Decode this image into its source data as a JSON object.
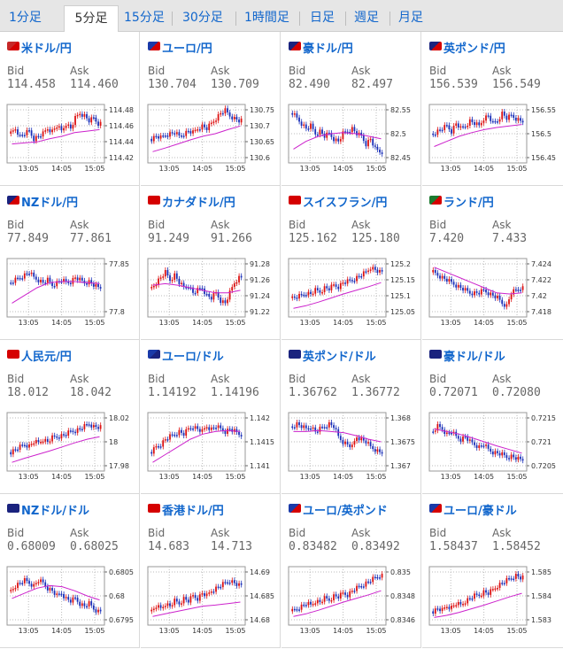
{
  "tabs": [
    "1分足",
    "5分足",
    "15分足",
    "30分足",
    "1時間足",
    "日足",
    "週足",
    "月足"
  ],
  "active_tab": 1,
  "labels": {
    "bid": "Bid",
    "ask": "Ask"
  },
  "colors": {
    "up": "#dd1111",
    "down": "#1a2fb8",
    "ma": "#cc22cc",
    "link": "#1166cc"
  },
  "charts": [
    {
      "name": "米ドル/円",
      "flag": "us-jp-flag-icon",
      "bid": "114.458",
      "ask": "114.460",
      "ticks": [
        "114.48",
        "114.46",
        "114.44",
        "114.42"
      ],
      "xticks": [
        "13:05",
        "14:05",
        "15:05"
      ],
      "trend": [
        0.5,
        0.4,
        0.55,
        0.5,
        0.45,
        0.6,
        0.55,
        0.5,
        0.4,
        0.45,
        0.35,
        0.45,
        0.3,
        0.4,
        0.2,
        0.1,
        0.15,
        0.25,
        0.2,
        0.3
      ],
      "ma": [
        0.7,
        0.68,
        0.66,
        0.6,
        0.55,
        0.48,
        0.45,
        0.42
      ]
    },
    {
      "name": "ユーロ/円",
      "flag": "eu-jp-flag-icon",
      "bid": "130.704",
      "ask": "130.709",
      "ticks": [
        "130.75",
        "130.7",
        "130.65",
        "130.6"
      ],
      "xticks": [
        "13:05",
        "14:05",
        "15:05"
      ],
      "trend": [
        0.6,
        0.55,
        0.58,
        0.52,
        0.5,
        0.48,
        0.55,
        0.5,
        0.45,
        0.48,
        0.4,
        0.35,
        0.4,
        0.3,
        0.2,
        0.1,
        0.05,
        0.15,
        0.2,
        0.25
      ],
      "ma": [
        0.85,
        0.78,
        0.7,
        0.62,
        0.55,
        0.5,
        0.42,
        0.35
      ]
    },
    {
      "name": "豪ドル/円",
      "flag": "au-jp-flag-icon",
      "bid": "82.490",
      "ask": "82.497",
      "ticks": [
        "82.55",
        "82.5",
        "82.45"
      ],
      "xticks": [
        "13:05",
        "14:05",
        "15:05"
      ],
      "trend": [
        0.1,
        0.2,
        0.3,
        0.4,
        0.35,
        0.5,
        0.45,
        0.55,
        0.5,
        0.6,
        0.65,
        0.5,
        0.45,
        0.4,
        0.5,
        0.55,
        0.7,
        0.6,
        0.8,
        0.85
      ],
      "ma": [
        0.8,
        0.65,
        0.55,
        0.5,
        0.48,
        0.5,
        0.55,
        0.6
      ]
    },
    {
      "name": "英ポンド/円",
      "flag": "uk-jp-flag-icon",
      "bid": "156.539",
      "ask": "156.549",
      "ticks": [
        "156.55",
        "156.5",
        "156.45"
      ],
      "xticks": [
        "13:05",
        "14:05",
        "15:05"
      ],
      "trend": [
        0.5,
        0.45,
        0.4,
        0.35,
        0.45,
        0.3,
        0.4,
        0.35,
        0.25,
        0.3,
        0.35,
        0.2,
        0.15,
        0.3,
        0.25,
        0.1,
        0.2,
        0.15,
        0.2,
        0.25
      ],
      "ma": [
        0.75,
        0.65,
        0.55,
        0.48,
        0.42,
        0.38,
        0.35,
        0.32
      ]
    },
    {
      "name": "NZドル/円",
      "flag": "nz-jp-flag-icon",
      "bid": "77.849",
      "ask": "77.861",
      "ticks": [
        "77.85",
        "77.8"
      ],
      "xticks": [
        "13:05",
        "14:05",
        "15:05"
      ],
      "trend": [
        0.4,
        0.35,
        0.3,
        0.25,
        0.2,
        0.3,
        0.35,
        0.4,
        0.35,
        0.45,
        0.4,
        0.35,
        0.4,
        0.38,
        0.3,
        0.35,
        0.4,
        0.38,
        0.45,
        0.5
      ],
      "ma": [
        0.8,
        0.65,
        0.5,
        0.4,
        0.38,
        0.38,
        0.4,
        0.42
      ]
    },
    {
      "name": "カナダドル/円",
      "flag": "ca-jp-flag-icon",
      "bid": "91.249",
      "ask": "91.266",
      "ticks": [
        "91.28",
        "91.26",
        "91.24",
        "91.22"
      ],
      "xticks": [
        "13:05",
        "14:05",
        "15:05"
      ],
      "trend": [
        0.5,
        0.4,
        0.3,
        0.2,
        0.35,
        0.25,
        0.4,
        0.5,
        0.45,
        0.6,
        0.55,
        0.5,
        0.65,
        0.7,
        0.6,
        0.75,
        0.8,
        0.6,
        0.4,
        0.3
      ],
      "ma": [
        0.45,
        0.42,
        0.45,
        0.5,
        0.55,
        0.6,
        0.6,
        0.55
      ]
    },
    {
      "name": "スイスフラン/円",
      "flag": "ch-jp-flag-icon",
      "bid": "125.162",
      "ask": "125.180",
      "ticks": [
        "125.2",
        "125.15",
        "125.1",
        "125.05"
      ],
      "xticks": [
        "13:05",
        "14:05",
        "15:05"
      ],
      "trend": [
        0.7,
        0.68,
        0.65,
        0.6,
        0.62,
        0.55,
        0.58,
        0.5,
        0.52,
        0.45,
        0.48,
        0.4,
        0.38,
        0.35,
        0.3,
        0.25,
        0.2,
        0.1,
        0.15,
        0.2
      ],
      "ma": [
        0.9,
        0.85,
        0.78,
        0.7,
        0.62,
        0.55,
        0.48,
        0.4
      ]
    },
    {
      "name": "ランド/円",
      "flag": "za-jp-flag-icon",
      "bid": "7.420",
      "ask": "7.433",
      "ticks": [
        "7.424",
        "7.422",
        "7.42",
        "7.418"
      ],
      "xticks": [
        "13:05",
        "14:05",
        "15:05"
      ],
      "trend": [
        0.2,
        0.25,
        0.3,
        0.35,
        0.4,
        0.45,
        0.5,
        0.55,
        0.6,
        0.6,
        0.6,
        0.55,
        0.6,
        0.65,
        0.7,
        0.8,
        0.85,
        0.6,
        0.55,
        0.5
      ],
      "ma": [
        0.1,
        0.2,
        0.3,
        0.4,
        0.5,
        0.6,
        0.62,
        0.6
      ]
    },
    {
      "name": "人民元/円",
      "flag": "cn-jp-flag-icon",
      "bid": "18.012",
      "ask": "18.042",
      "ticks": [
        "18.02",
        "18",
        "17.98"
      ],
      "xticks": [
        "13:05",
        "14:05",
        "15:05"
      ],
      "trend": [
        0.7,
        0.65,
        0.6,
        0.55,
        0.58,
        0.5,
        0.52,
        0.45,
        0.5,
        0.42,
        0.4,
        0.38,
        0.35,
        0.3,
        0.28,
        0.25,
        0.2,
        0.15,
        0.2,
        0.22
      ],
      "ma": [
        0.9,
        0.82,
        0.75,
        0.68,
        0.6,
        0.52,
        0.45,
        0.4
      ]
    },
    {
      "name": "ユーロ/ドル",
      "flag": "eu-us-flag-icon",
      "bid": "1.14192",
      "ask": "1.14196",
      "ticks": [
        "1.142",
        "1.1415",
        "1.141"
      ],
      "xticks": [
        "13:05",
        "14:05",
        "15:05"
      ],
      "trend": [
        0.7,
        0.6,
        0.55,
        0.45,
        0.4,
        0.35,
        0.3,
        0.35,
        0.25,
        0.2,
        0.25,
        0.3,
        0.2,
        0.25,
        0.2,
        0.25,
        0.3,
        0.25,
        0.3,
        0.35
      ],
      "ma": [
        0.9,
        0.75,
        0.6,
        0.45,
        0.35,
        0.3,
        0.28,
        0.3
      ]
    },
    {
      "name": "英ポンド/ドル",
      "flag": "uk-us-flag-icon",
      "bid": "1.36762",
      "ask": "1.36772",
      "ticks": [
        "1.368",
        "1.3675",
        "1.367"
      ],
      "xticks": [
        "13:05",
        "14:05",
        "15:05"
      ],
      "trend": [
        0.2,
        0.15,
        0.2,
        0.25,
        0.2,
        0.3,
        0.25,
        0.2,
        0.15,
        0.2,
        0.4,
        0.5,
        0.55,
        0.6,
        0.4,
        0.45,
        0.5,
        0.6,
        0.65,
        0.7
      ],
      "ma": [
        0.3,
        0.3,
        0.28,
        0.3,
        0.32,
        0.38,
        0.45,
        0.5
      ]
    },
    {
      "name": "豪ドル/ドル",
      "flag": "au-us-flag-icon",
      "bid": "0.72071",
      "ask": "0.72080",
      "ticks": [
        "0.7215",
        "0.721",
        "0.7205"
      ],
      "xticks": [
        "13:05",
        "14:05",
        "15:05"
      ],
      "trend": [
        0.3,
        0.2,
        0.25,
        0.35,
        0.3,
        0.4,
        0.45,
        0.4,
        0.5,
        0.55,
        0.6,
        0.55,
        0.65,
        0.7,
        0.72,
        0.75,
        0.8,
        0.78,
        0.82,
        0.85
      ],
      "ma": [
        0.25,
        0.3,
        0.35,
        0.42,
        0.5,
        0.58,
        0.65,
        0.72
      ]
    },
    {
      "name": "NZドル/ドル",
      "flag": "nz-us-flag-icon",
      "bid": "0.68009",
      "ask": "0.68025",
      "ticks": [
        "0.6805",
        "0.68",
        "0.6795"
      ],
      "xticks": [
        "13:05",
        "14:05",
        "15:05"
      ],
      "trend": [
        0.4,
        0.3,
        0.25,
        0.2,
        0.25,
        0.3,
        0.2,
        0.25,
        0.35,
        0.4,
        0.5,
        0.45,
        0.55,
        0.6,
        0.55,
        0.65,
        0.7,
        0.65,
        0.75,
        0.8
      ],
      "ma": [
        0.55,
        0.45,
        0.35,
        0.3,
        0.32,
        0.4,
        0.5,
        0.58
      ]
    },
    {
      "name": "香港ドル/円",
      "flag": "hk-jp-flag-icon",
      "bid": "14.683",
      "ask": "14.713",
      "ticks": [
        "14.69",
        "14.685",
        "14.68"
      ],
      "xticks": [
        "13:05",
        "14:05",
        "15:05"
      ],
      "trend": [
        0.8,
        0.7,
        0.75,
        0.65,
        0.7,
        0.6,
        0.65,
        0.55,
        0.6,
        0.5,
        0.55,
        0.45,
        0.5,
        0.4,
        0.35,
        0.3,
        0.25,
        0.2,
        0.25,
        0.3
      ],
      "ma": [
        0.9,
        0.85,
        0.8,
        0.75,
        0.7,
        0.68,
        0.65,
        0.62
      ]
    },
    {
      "name": "ユーロ/英ポンド",
      "flag": "eu-uk-flag-icon",
      "bid": "0.83482",
      "ask": "0.83492",
      "ticks": [
        "0.835",
        "0.8348",
        "0.8346"
      ],
      "xticks": [
        "13:05",
        "14:05",
        "15:05"
      ],
      "trend": [
        0.8,
        0.75,
        0.7,
        0.65,
        0.68,
        0.6,
        0.62,
        0.55,
        0.58,
        0.5,
        0.52,
        0.45,
        0.48,
        0.4,
        0.35,
        0.3,
        0.25,
        0.2,
        0.15,
        0.1
      ],
      "ma": [
        0.9,
        0.85,
        0.78,
        0.7,
        0.62,
        0.55,
        0.48,
        0.4
      ]
    },
    {
      "name": "ユーロ/豪ドル",
      "flag": "eu-au-flag-icon",
      "bid": "1.58437",
      "ask": "1.58452",
      "ticks": [
        "1.585",
        "1.584",
        "1.583"
      ],
      "xticks": [
        "13:05",
        "14:05",
        "15:05"
      ],
      "trend": [
        0.8,
        0.75,
        0.78,
        0.7,
        0.72,
        0.65,
        0.68,
        0.6,
        0.55,
        0.5,
        0.48,
        0.42,
        0.45,
        0.38,
        0.3,
        0.25,
        0.2,
        0.15,
        0.1,
        0.15
      ],
      "ma": [
        0.92,
        0.88,
        0.82,
        0.75,
        0.68,
        0.6,
        0.52,
        0.45
      ]
    }
  ]
}
